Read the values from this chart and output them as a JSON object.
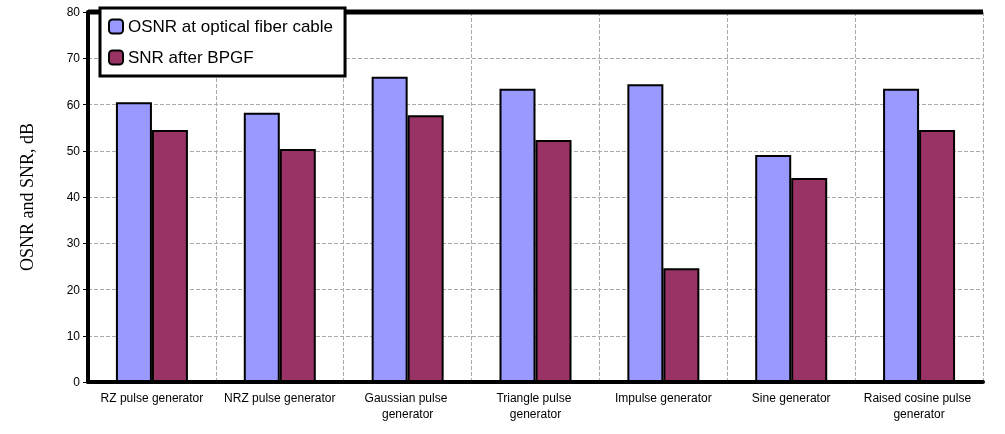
{
  "chart_data": {
    "type": "bar",
    "ylabel": "OSNR and SNR, dB",
    "categories": [
      "RZ pulse generator",
      "NRZ pulse generator",
      "Gaussian pulse generator",
      "Triangle pulse generator",
      "Impulse generator",
      "Sine generator",
      "Raised cosine pulse generator"
    ],
    "series": [
      {
        "name": "OSNR at optical fiber cable",
        "color": "#9999ff",
        "values": [
          60.5,
          58.2,
          66,
          63.4,
          64.4,
          49.1,
          63.4
        ]
      },
      {
        "name": "SNR after BPGF",
        "color": "#993366",
        "values": [
          54.5,
          50.4,
          57.7,
          52.3,
          24.6,
          44.1,
          54.5
        ]
      }
    ],
    "ylim": [
      0,
      80
    ],
    "yticks": [
      0,
      10,
      20,
      30,
      40,
      50,
      60,
      70,
      80
    ],
    "grid": true,
    "legend": "top left"
  }
}
